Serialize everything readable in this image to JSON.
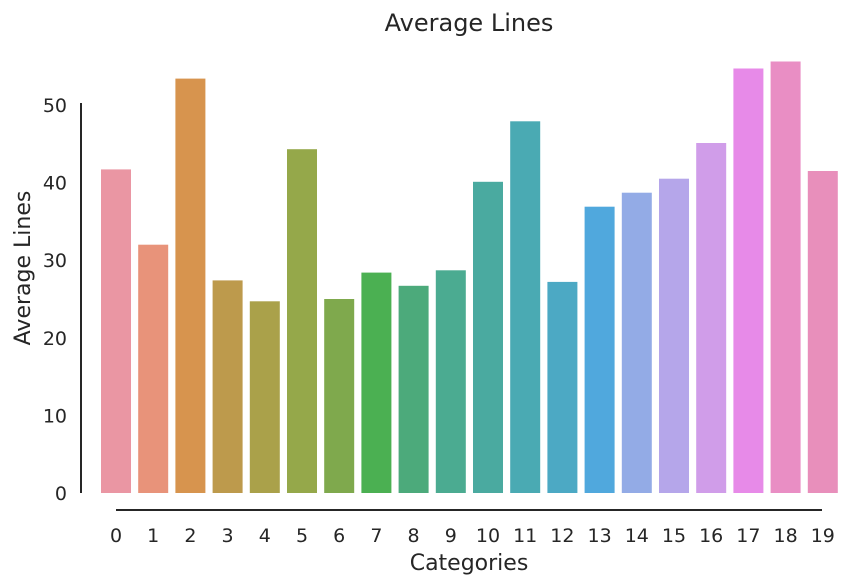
{
  "chart_data": {
    "type": "bar",
    "title": "Average Lines",
    "xlabel": "Categories",
    "ylabel": "Average Lines",
    "categories": [
      "0",
      "1",
      "2",
      "3",
      "4",
      "5",
      "6",
      "7",
      "8",
      "9",
      "10",
      "11",
      "12",
      "13",
      "14",
      "15",
      "16",
      "17",
      "18",
      "19"
    ],
    "values": [
      41.7,
      32.0,
      53.4,
      27.4,
      24.7,
      44.3,
      25.0,
      28.4,
      26.7,
      28.7,
      40.1,
      47.9,
      27.2,
      36.9,
      38.7,
      40.5,
      45.1,
      54.7,
      55.6,
      41.5
    ],
    "colors": [
      "#ea96a3",
      "#e8937a",
      "#d7944e",
      "#bd9a4c",
      "#aaa14a",
      "#95a84a",
      "#7fa94d",
      "#4bb052",
      "#4caa7b",
      "#4bab91",
      "#4aaaa0",
      "#4aaab3",
      "#4ca9c4",
      "#50a8dd",
      "#93abe6",
      "#b5a6ea",
      "#d09de9",
      "#e78ae8",
      "#e98ec4",
      "#e88fbb"
    ],
    "yticks": [
      0,
      10,
      20,
      30,
      40,
      50
    ],
    "ylim": [
      0,
      57
    ],
    "grid": false,
    "legend": false
  }
}
